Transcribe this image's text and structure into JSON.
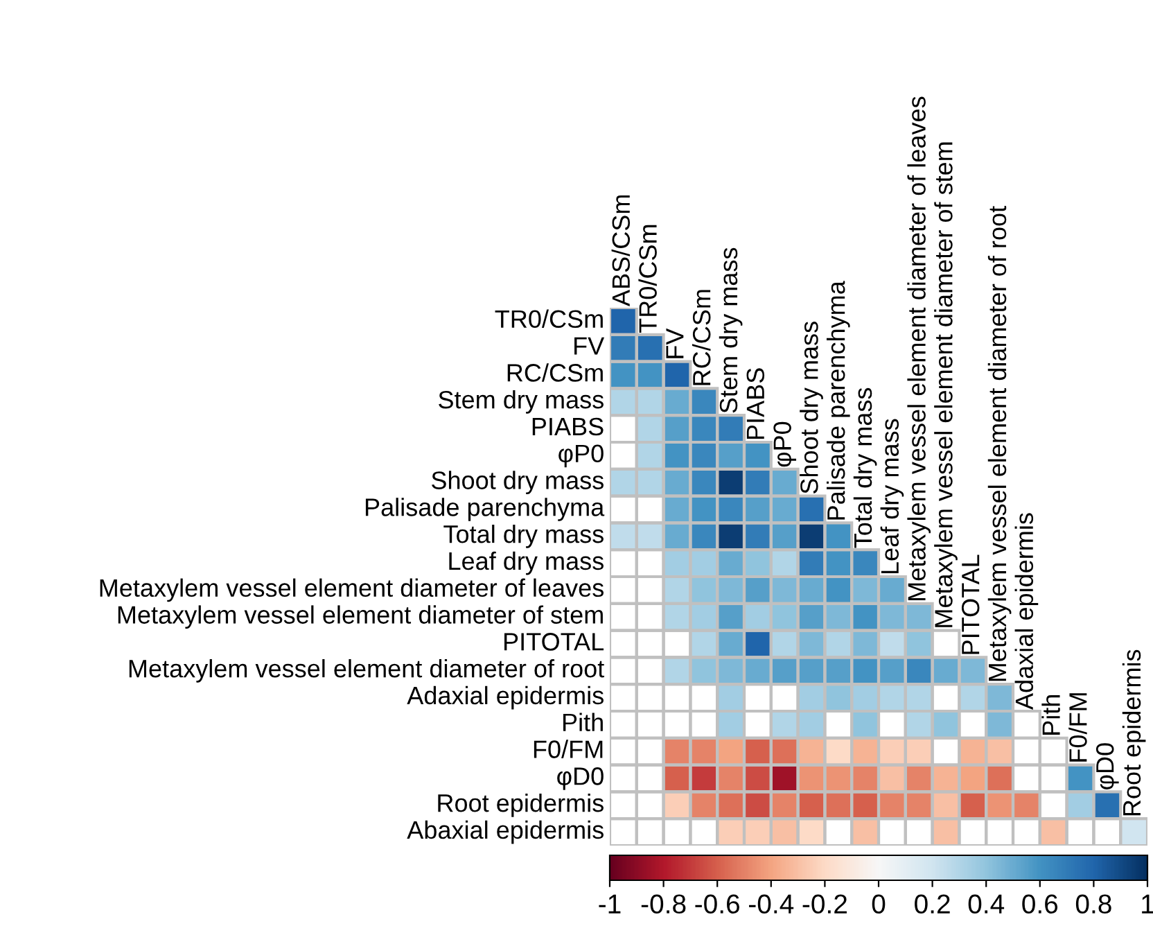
{
  "chart_data": {
    "type": "heatmap",
    "categories": [
      "ABS/CSm",
      "TR0/CSm",
      "FV",
      "RC/CSm",
      "Stem dry mass",
      "PIABS",
      "φP0",
      "Shoot dry mass",
      "Palisade parenchyma",
      "Total dry mass",
      "Leaf dry mass",
      "Metaxylem vessel element diameter of leaves",
      "Metaxylem vessel element diameter of stem",
      "PITOTAL",
      "Metaxylem vessel element diameter of root",
      "Adaxial epidermis",
      "Pith",
      "F0/FM",
      "φD0",
      "Root epidermis"
    ],
    "y_categories": [
      "TR0/CSm",
      "FV",
      "RC/CSm",
      "Stem dry mass",
      "PIABS",
      "φP0",
      "Shoot dry mass",
      "Palisade parenchyma",
      "Total dry mass",
      "Leaf dry mass",
      "Metaxylem vessel element diameter of leaves",
      "Metaxylem vessel element diameter of stem",
      "PITOTAL",
      "Metaxylem vessel element diameter of root",
      "Adaxial epidermis",
      "Pith",
      "F0/FM",
      "φD0",
      "Root epidermis",
      "Abaxial epidermis"
    ],
    "cells": [
      [
        0.8,
        null,
        null,
        null,
        null,
        null,
        null,
        null,
        null,
        null,
        null,
        null,
        null,
        null,
        null,
        null,
        null,
        null,
        null,
        null
      ],
      [
        0.7,
        0.75,
        null,
        null,
        null,
        null,
        null,
        null,
        null,
        null,
        null,
        null,
        null,
        null,
        null,
        null,
        null,
        null,
        null,
        null
      ],
      [
        0.6,
        0.6,
        0.8,
        null,
        null,
        null,
        null,
        null,
        null,
        null,
        null,
        null,
        null,
        null,
        null,
        null,
        null,
        null,
        null,
        null
      ],
      [
        0.3,
        0.3,
        0.5,
        0.65,
        null,
        null,
        null,
        null,
        null,
        null,
        null,
        null,
        null,
        null,
        null,
        null,
        null,
        null,
        null,
        null
      ],
      [
        null,
        0.3,
        0.55,
        0.65,
        0.7,
        null,
        null,
        null,
        null,
        null,
        null,
        null,
        null,
        null,
        null,
        null,
        null,
        null,
        null,
        null
      ],
      [
        null,
        0.3,
        0.6,
        0.65,
        0.55,
        0.6,
        null,
        null,
        null,
        null,
        null,
        null,
        null,
        null,
        null,
        null,
        null,
        null,
        null,
        null
      ],
      [
        0.3,
        0.3,
        0.5,
        0.65,
        0.95,
        0.7,
        0.5,
        null,
        null,
        null,
        null,
        null,
        null,
        null,
        null,
        null,
        null,
        null,
        null,
        null
      ],
      [
        null,
        null,
        0.5,
        0.6,
        0.65,
        0.55,
        0.5,
        0.75,
        null,
        null,
        null,
        null,
        null,
        null,
        null,
        null,
        null,
        null,
        null,
        null
      ],
      [
        0.25,
        0.25,
        0.5,
        0.65,
        0.95,
        0.7,
        0.55,
        0.95,
        0.6,
        null,
        null,
        null,
        null,
        null,
        null,
        null,
        null,
        null,
        null,
        null
      ],
      [
        null,
        null,
        0.35,
        0.35,
        0.5,
        0.4,
        0.3,
        0.7,
        0.6,
        0.65,
        null,
        null,
        null,
        null,
        null,
        null,
        null,
        null,
        null,
        null
      ],
      [
        null,
        null,
        0.3,
        0.4,
        0.45,
        0.55,
        0.45,
        0.5,
        0.6,
        0.45,
        0.5,
        null,
        null,
        null,
        null,
        null,
        null,
        null,
        null,
        null
      ],
      [
        null,
        null,
        0.3,
        0.35,
        0.55,
        0.35,
        0.4,
        0.55,
        0.45,
        0.6,
        0.45,
        0.45,
        null,
        null,
        null,
        null,
        null,
        null,
        null,
        null
      ],
      [
        null,
        null,
        null,
        0.3,
        0.5,
        0.8,
        0.3,
        0.45,
        0.3,
        0.45,
        0.25,
        0.4,
        null,
        null,
        null,
        null,
        null,
        null,
        null,
        null
      ],
      [
        null,
        null,
        0.3,
        0.4,
        0.45,
        0.5,
        0.55,
        0.55,
        0.55,
        0.6,
        0.55,
        0.65,
        0.5,
        0.45,
        null,
        null,
        null,
        null,
        null,
        null
      ],
      [
        null,
        null,
        null,
        null,
        0.35,
        null,
        null,
        0.35,
        0.4,
        0.35,
        0.3,
        0.3,
        null,
        0.3,
        0.45,
        null,
        null,
        null,
        null,
        null
      ],
      [
        null,
        null,
        null,
        null,
        0.35,
        null,
        0.3,
        0.35,
        null,
        0.4,
        null,
        0.3,
        0.4,
        null,
        0.45,
        null,
        null,
        null,
        null,
        null
      ],
      [
        null,
        null,
        -0.5,
        -0.5,
        -0.4,
        -0.6,
        -0.55,
        -0.35,
        -0.2,
        -0.35,
        -0.25,
        -0.25,
        null,
        -0.35,
        -0.3,
        null,
        null,
        null,
        null,
        null
      ],
      [
        null,
        null,
        -0.6,
        -0.7,
        -0.5,
        -0.65,
        -0.85,
        -0.45,
        -0.45,
        -0.5,
        -0.3,
        -0.5,
        -0.35,
        -0.4,
        -0.55,
        null,
        null,
        0.6,
        null,
        null
      ],
      [
        null,
        null,
        -0.25,
        -0.5,
        -0.55,
        -0.65,
        -0.5,
        -0.6,
        -0.55,
        -0.6,
        -0.5,
        -0.5,
        -0.3,
        -0.6,
        -0.45,
        -0.5,
        null,
        0.35,
        0.75,
        null
      ],
      [
        null,
        null,
        null,
        null,
        -0.25,
        -0.25,
        -0.3,
        -0.2,
        null,
        -0.3,
        null,
        null,
        -0.3,
        null,
        null,
        null,
        -0.3,
        null,
        null,
        0.2
      ]
    ],
    "clim": [
      -1,
      1
    ],
    "cticks": [
      {
        "value": -1,
        "label": "-1"
      },
      {
        "value": -0.8,
        "label": "-0.8"
      },
      {
        "value": -0.6,
        "label": "-0.6"
      },
      {
        "value": -0.4,
        "label": "-0.4"
      },
      {
        "value": -0.2,
        "label": "-0.2"
      },
      0,
      0.2,
      0.4,
      0.6,
      0.8,
      1
    ]
  }
}
